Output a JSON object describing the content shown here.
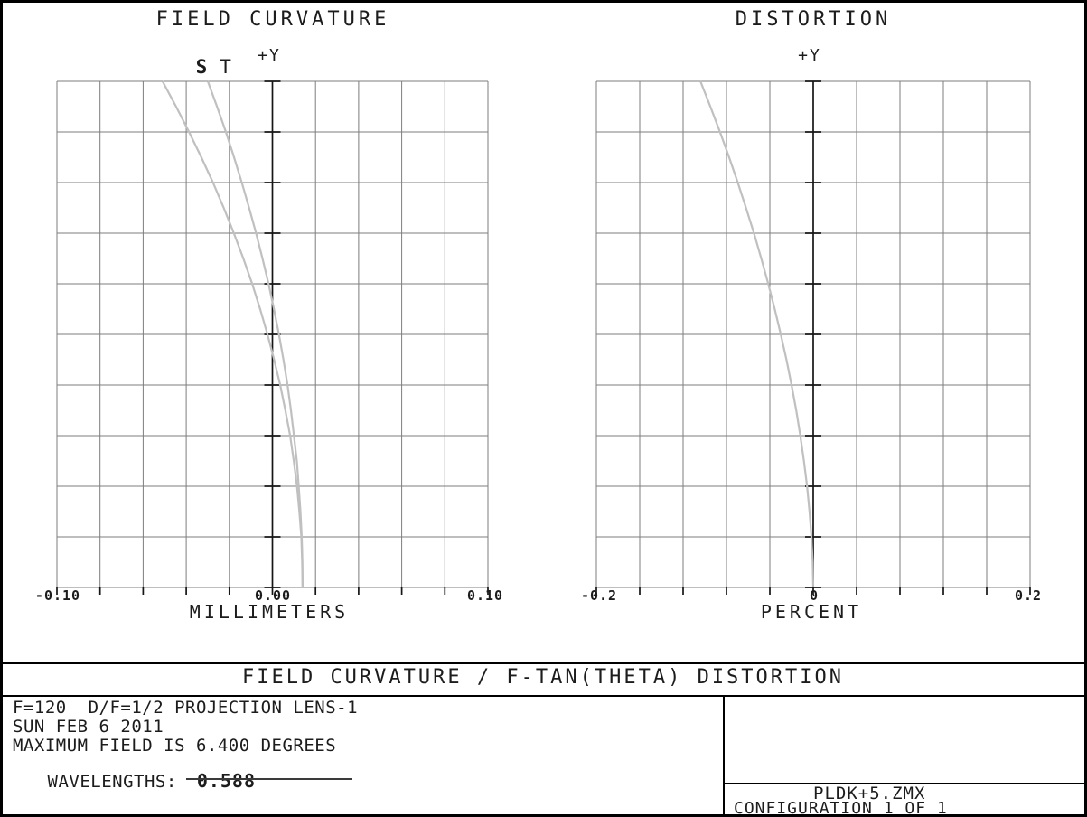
{
  "chart_data": [
    {
      "type": "line",
      "title": "FIELD CURVATURE",
      "xlabel": "MILLIMETERS",
      "yaxis_label": "+Y",
      "xlim": [
        -0.1,
        0.1
      ],
      "ylim": [
        0,
        6.4
      ],
      "max_field_degrees": 6.4,
      "x_tick_labels": [
        "-0.10",
        "0.00",
        "0.10"
      ],
      "grid": {
        "cols": 10,
        "rows": 10,
        "grid_on": true
      },
      "field_fraction": [
        0,
        0.05,
        0.1,
        0.15,
        0.2,
        0.25,
        0.3,
        0.35,
        0.4,
        0.45,
        0.5,
        0.55,
        0.6,
        0.65,
        0.7,
        0.75,
        0.8,
        0.85,
        0.9,
        0.95,
        1.0
      ],
      "series": [
        {
          "name": "S",
          "units": "mm",
          "values": [
            0.014,
            0.0138,
            0.0134,
            0.0125,
            0.0114,
            0.0099,
            0.0082,
            0.006,
            0.0036,
            0.0008,
            -0.0023,
            -0.0057,
            -0.0094,
            -0.0135,
            -0.0179,
            -0.0226,
            -0.0276,
            -0.033,
            -0.0387,
            -0.0447,
            -0.051
          ]
        },
        {
          "name": "T",
          "units": "mm",
          "values": [
            0.014,
            0.0139,
            0.0136,
            0.013,
            0.0122,
            0.0113,
            0.01,
            0.0086,
            0.007,
            0.0051,
            0.003,
            0.0007,
            -0.0018,
            -0.0046,
            -0.0076,
            -0.0108,
            -0.0142,
            -0.0178,
            -0.0216,
            -0.0257,
            -0.03
          ]
        }
      ]
    },
    {
      "type": "line",
      "title": "DISTORTION",
      "xlabel": "PERCENT",
      "yaxis_label": "+Y",
      "xlim": [
        -0.2,
        0.2
      ],
      "ylim": [
        0,
        6.4
      ],
      "max_field_degrees": 6.4,
      "x_tick_labels": [
        "-0.2",
        "0",
        "0.2"
      ],
      "grid": {
        "cols": 10,
        "rows": 10,
        "grid_on": true
      },
      "field_fraction": [
        0,
        0.05,
        0.1,
        0.15,
        0.2,
        0.25,
        0.3,
        0.35,
        0.4,
        0.45,
        0.5,
        0.55,
        0.6,
        0.65,
        0.7,
        0.75,
        0.8,
        0.85,
        0.9,
        0.95,
        1.0
      ],
      "series": [
        {
          "name": "DISTORTION",
          "units": "percent",
          "values": [
            0,
            -0.0005,
            -0.0017,
            -0.0034,
            -0.0057,
            -0.0086,
            -0.0119,
            -0.0157,
            -0.02,
            -0.0247,
            -0.0299,
            -0.0355,
            -0.0415,
            -0.0479,
            -0.0547,
            -0.062,
            -0.0696,
            -0.0776,
            -0.086,
            -0.0948,
            -0.104
          ]
        }
      ]
    }
  ],
  "footer": {
    "main_title": "FIELD CURVATURE / F-TAN(THETA) DISTORTION",
    "info_lines": [
      "F=120  D/F=1/2 PROJECTION LENS-1",
      "SUN FEB 6 2011",
      "MAXIMUM FIELD IS 6.400 DEGREES"
    ],
    "wavelengths_label": "WAVELENGTHS:",
    "wavelength_value": "0.588",
    "file_name": "PLDK+5.ZMX",
    "configuration": "CONFIGURATION 1 OF 1"
  },
  "colors": {
    "grid": "#7d7d7d",
    "axis": "#161616",
    "curve": "#c0c0c0",
    "text": "#1c1c1c",
    "background": "#ffffff",
    "border": "#000000"
  }
}
